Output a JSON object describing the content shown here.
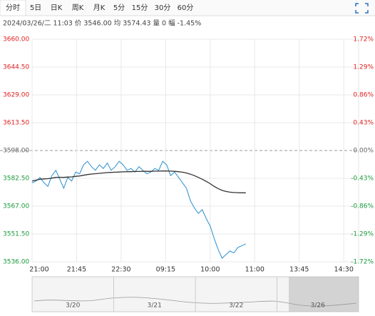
{
  "tabs": [
    "分时",
    "5日",
    "日K",
    "周K",
    "月K",
    "5分",
    "15分",
    "30分",
    "60分"
  ],
  "info": "2024/03/26/二 11:03  价 3546.00  均 3574.43  量 0  幅 -1.45%",
  "chart_data": {
    "type": "line",
    "x": [
      0,
      4,
      8,
      12,
      16,
      20,
      24,
      28,
      32,
      36,
      40,
      44,
      48,
      52,
      56,
      60,
      64,
      68,
      72,
      76,
      80,
      84,
      88,
      92,
      96,
      100,
      104,
      108,
      112,
      116,
      120,
      124,
      128,
      132,
      136,
      140,
      144,
      148,
      152,
      156,
      160,
      164,
      168,
      172,
      176,
      180,
      184,
      188,
      192,
      196,
      200,
      204,
      208,
      212,
      216
    ],
    "series": [
      {
        "color": "#2a8fd0",
        "values": [
          3580,
          3581,
          3583,
          3580,
          3578,
          3584,
          3587,
          3582,
          3577,
          3583,
          3581,
          3586,
          3585,
          3590,
          3592,
          3589,
          3587,
          3590,
          3588,
          3591,
          3587,
          3589,
          3592,
          3590,
          3587,
          3588,
          3586,
          3589,
          3587,
          3585,
          3586,
          3588,
          3587,
          3592,
          3590,
          3584,
          3586,
          3583,
          3580,
          3577,
          3570,
          3566,
          3563,
          3565,
          3560,
          3556,
          3549,
          3543,
          3538,
          3540,
          3542,
          3541,
          3544,
          3545,
          3546
        ]
      },
      {
        "color": "#333333",
        "values": [
          3581,
          3581.5,
          3582,
          3582.2,
          3582.3,
          3582.6,
          3583,
          3583.1,
          3583,
          3583.2,
          3583.3,
          3583.6,
          3583.8,
          3584.2,
          3584.6,
          3584.9,
          3585.1,
          3585.3,
          3585.5,
          3585.7,
          3585.8,
          3585.9,
          3586,
          3586.1,
          3586.2,
          3586.2,
          3586.3,
          3586.3,
          3586.4,
          3586.4,
          3586.4,
          3586.5,
          3586.5,
          3586.6,
          3586.6,
          3586.5,
          3586.4,
          3586.2,
          3585.9,
          3585.5,
          3584.8,
          3584,
          3583,
          3582,
          3580.8,
          3579.5,
          3578,
          3576.8,
          3575.8,
          3575.2,
          3574.8,
          3574.6,
          3574.5,
          3574.45,
          3574.43
        ]
      }
    ],
    "xlim": [
      0,
      330
    ],
    "xticks": [
      {
        "value": 0,
        "label": "21:00"
      },
      {
        "value": 45,
        "label": "21:45"
      },
      {
        "value": 90,
        "label": "22:30"
      },
      {
        "value": 135,
        "label": "09:15"
      },
      {
        "value": 180,
        "label": "10:00"
      },
      {
        "value": 225,
        "label": "11:00"
      },
      {
        "value": 270,
        "label": "13:45"
      },
      {
        "value": 315,
        "label": "14:30"
      }
    ],
    "ylim": [
      3536,
      3660
    ],
    "yticks": [
      {
        "value": 3660,
        "label": "3660.00"
      },
      {
        "value": 3644.5,
        "label": "3644.50"
      },
      {
        "value": 3629,
        "label": "3629.00"
      },
      {
        "value": 3613.5,
        "label": "3613.50"
      },
      {
        "value": 3598,
        "label": "3598.00"
      },
      {
        "value": 3582.5,
        "label": "3582.50"
      },
      {
        "value": 3567,
        "label": "3567.00"
      },
      {
        "value": 3551.5,
        "label": "3551.50"
      },
      {
        "value": 3536,
        "label": "3536.00"
      }
    ],
    "y2lim": [
      -1.72,
      1.72
    ],
    "y2ticks": [
      {
        "value": 1.72,
        "label": "1.72%"
      },
      {
        "value": 1.29,
        "label": "1.29%"
      },
      {
        "value": 0.86,
        "label": "0.86%"
      },
      {
        "value": 0.43,
        "label": "0.43%"
      },
      {
        "value": 0,
        "label": "0.00%"
      },
      {
        "value": -0.43,
        "label": "-0.43%"
      },
      {
        "value": -0.86,
        "label": "-0.86%"
      },
      {
        "value": -1.29,
        "label": "-1.29%"
      },
      {
        "value": -1.72,
        "label": "-1.72%"
      }
    ],
    "up_color": "#e02020",
    "down_color": "#1a9a3a",
    "flat_color": "#666666",
    "grid": true,
    "navigator": [
      "3/20",
      "3/21",
      "3/22",
      "3/26"
    ]
  }
}
